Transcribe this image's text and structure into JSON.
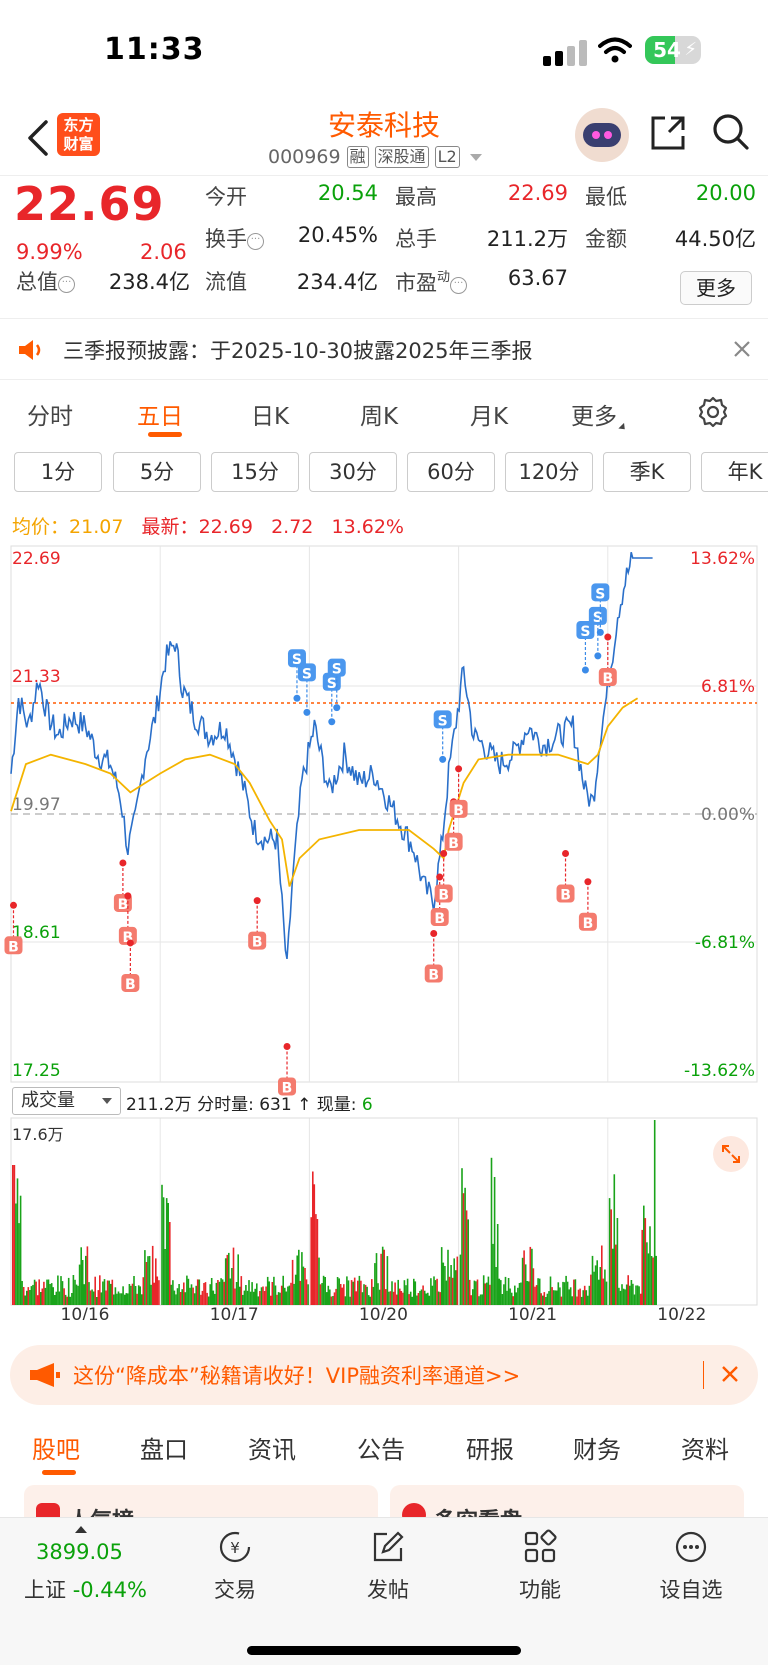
{
  "status": {
    "time": "11:33",
    "battery": "54",
    "battery_level": 0.54
  },
  "header": {
    "logo_line1": "东方",
    "logo_line2": "财富",
    "title": "安泰科技",
    "code": "000969",
    "tags": [
      "融",
      "深股通",
      "L2"
    ]
  },
  "quote": {
    "price": "22.69",
    "change_pct": "9.99%",
    "change": "2.06",
    "fields": {
      "open_label": "今开",
      "open": "20.54",
      "high_label": "最高",
      "high": "22.69",
      "low_label": "最低",
      "low": "20.00",
      "turnover_label": "换手",
      "turnover": "20.45%",
      "volume_label": "总手",
      "volume": "211.2万",
      "amount_label": "金额",
      "amount": "44.50亿",
      "mcap_label": "总值",
      "mcap": "238.4亿",
      "float_label": "流值",
      "float": "234.4亿",
      "pe_label": "市盈",
      "pe_sup": "动",
      "pe": "63.67"
    },
    "more_label": "更多"
  },
  "notice": {
    "text": "三季报预披露：于2025-10-30披露2025年三季报"
  },
  "period_tabs": [
    "分时",
    "五日",
    "日K",
    "周K",
    "月K",
    "更多"
  ],
  "active_period": "五日",
  "minute_buttons": [
    "1分",
    "5分",
    "15分",
    "30分",
    "60分",
    "120分",
    "季K",
    "年K"
  ],
  "chart_legend": {
    "avg_label": "均价：",
    "avg": "21.07",
    "latest_label": "最新：",
    "latest": "22.69",
    "latest_chg": "2.72",
    "latest_pct": "13.62%"
  },
  "chart_data": [
    {
      "type": "line",
      "title": "",
      "ylim": [
        17.25,
        22.69
      ],
      "y_ticks_left": [
        "22.69",
        "21.33",
        "19.97",
        "18.61",
        "17.25"
      ],
      "y_ticks_right": [
        "13.62%",
        "6.81%",
        "0.00%",
        "-6.81%",
        "-13.62%"
      ],
      "x_labels": [
        "10/16",
        "10/17",
        "10/20",
        "10/21",
        "10/22"
      ],
      "reference_price": 19.97,
      "current_price_line": 21.15,
      "series": [],
      "colors": {
        "price": "#2a6fc9",
        "avg": "#f4b400",
        "buy": "#e8262a",
        "sell": "#3b8be8"
      },
      "price_path": [
        [
          0,
          20.4
        ],
        [
          0.15,
          21.2
        ],
        [
          0.35,
          20.9
        ],
        [
          0.55,
          21.4
        ],
        [
          0.75,
          21.0
        ],
        [
          0.95,
          20.8
        ],
        [
          1.2,
          21.0
        ],
        [
          1.5,
          20.9
        ],
        [
          1.75,
          20.6
        ],
        [
          2.0,
          20.5
        ],
        [
          2.2,
          20.15
        ],
        [
          2.35,
          19.6
        ],
        [
          2.5,
          19.9
        ],
        [
          2.7,
          20.6
        ],
        [
          2.9,
          21.0
        ],
        [
          3.1,
          21.6
        ],
        [
          3.3,
          21.8
        ],
        [
          3.45,
          21.3
        ],
        [
          3.7,
          21.0
        ],
        [
          4.0,
          20.8
        ],
        [
          4.3,
          20.9
        ],
        [
          4.6,
          20.4
        ],
        [
          4.9,
          19.8
        ],
        [
          5.1,
          19.7
        ],
        [
          5.35,
          19.7
        ],
        [
          5.55,
          18.3
        ],
        [
          5.65,
          19.2
        ],
        [
          5.85,
          20.3
        ],
        [
          6.1,
          20.9
        ],
        [
          6.4,
          20.2
        ],
        [
          6.7,
          20.6
        ],
        [
          7.0,
          20.3
        ],
        [
          7.3,
          20.4
        ],
        [
          7.6,
          20.1
        ],
        [
          7.9,
          19.8
        ],
        [
          8.1,
          19.6
        ],
        [
          8.3,
          19.2
        ],
        [
          8.5,
          19.05
        ],
        [
          8.65,
          19.6
        ],
        [
          8.8,
          20.4
        ],
        [
          8.95,
          20.95
        ],
        [
          9.1,
          21.5
        ],
        [
          9.3,
          20.8
        ],
        [
          9.5,
          20.7
        ],
        [
          9.8,
          20.5
        ],
        [
          10.1,
          20.6
        ],
        [
          10.4,
          20.9
        ],
        [
          10.7,
          20.7
        ],
        [
          11.0,
          20.8
        ],
        [
          11.3,
          20.9
        ],
        [
          11.55,
          20.2
        ],
        [
          11.7,
          20.1
        ],
        [
          11.85,
          20.8
        ],
        [
          12.0,
          21.3
        ],
        [
          12.2,
          22.1
        ],
        [
          12.35,
          22.45
        ],
        [
          12.5,
          22.69
        ],
        [
          12.9,
          22.69
        ]
      ],
      "avg_path": [
        [
          0,
          20.0
        ],
        [
          0.3,
          20.5
        ],
        [
          0.8,
          20.6
        ],
        [
          1.5,
          20.5
        ],
        [
          2.0,
          20.4
        ],
        [
          2.4,
          20.2
        ],
        [
          2.7,
          20.3
        ],
        [
          3.0,
          20.4
        ],
        [
          3.5,
          20.55
        ],
        [
          4.0,
          20.6
        ],
        [
          4.5,
          20.5
        ],
        [
          4.8,
          20.3
        ],
        [
          5.2,
          19.9
        ],
        [
          5.45,
          19.7
        ],
        [
          5.6,
          19.2
        ],
        [
          5.8,
          19.5
        ],
        [
          6.2,
          19.7
        ],
        [
          7.0,
          19.8
        ],
        [
          8.0,
          19.8
        ],
        [
          8.5,
          19.6
        ],
        [
          8.7,
          19.5
        ],
        [
          8.8,
          19.8
        ],
        [
          9.1,
          20.3
        ],
        [
          9.4,
          20.55
        ],
        [
          10.0,
          20.6
        ],
        [
          11.0,
          20.6
        ],
        [
          11.6,
          20.5
        ],
        [
          11.8,
          20.6
        ],
        [
          12.0,
          20.9
        ],
        [
          12.3,
          21.1
        ],
        [
          12.6,
          21.2
        ]
      ],
      "trade_marks": [
        {
          "t": 0.05,
          "type": "B",
          "price": 19.0
        },
        {
          "t": 2.25,
          "type": "B",
          "price": 19.45
        },
        {
          "t": 2.35,
          "type": "B",
          "price": 19.1
        },
        {
          "t": 2.4,
          "type": "B",
          "price": 18.6
        },
        {
          "t": 4.95,
          "type": "B",
          "price": 19.05
        },
        {
          "t": 5.55,
          "type": "B",
          "price": 17.5
        },
        {
          "t": 5.75,
          "type": "S",
          "price": 21.2
        },
        {
          "t": 5.95,
          "type": "S",
          "price": 21.05
        },
        {
          "t": 6.45,
          "type": "S",
          "price": 20.95
        },
        {
          "t": 6.55,
          "type": "S",
          "price": 21.1
        },
        {
          "t": 8.5,
          "type": "B",
          "price": 18.7
        },
        {
          "t": 8.62,
          "type": "B",
          "price": 19.3
        },
        {
          "t": 8.7,
          "type": "B",
          "price": 19.55
        },
        {
          "t": 8.68,
          "type": "S",
          "price": 20.55
        },
        {
          "t": 8.9,
          "type": "B",
          "price": 20.1
        },
        {
          "t": 9.0,
          "type": "B",
          "price": 20.45
        },
        {
          "t": 11.15,
          "type": "B",
          "price": 19.55
        },
        {
          "t": 11.6,
          "type": "B",
          "price": 19.25
        },
        {
          "t": 11.55,
          "type": "S",
          "price": 21.5
        },
        {
          "t": 11.8,
          "type": "S",
          "price": 21.65
        },
        {
          "t": 11.85,
          "type": "S",
          "price": 21.9
        },
        {
          "t": 12.0,
          "type": "B",
          "price": 21.85
        }
      ]
    },
    {
      "type": "bar",
      "title": "",
      "ylabel_max": "17.6万",
      "note": "",
      "series": []
    }
  ],
  "volume": {
    "selector": "成交量",
    "total": "211.2万",
    "minute_label": "分时量:",
    "minute_val": "631",
    "now_label": "现量:",
    "now_val": "6"
  },
  "ad": {
    "text": "这份“降成本”秘籍请收好！VIP融资利率通道>>"
  },
  "content_tabs": [
    "股吧",
    "盘口",
    "资讯",
    "公告",
    "研报",
    "财务",
    "资料"
  ],
  "peek_cards": [
    "人气榜",
    "多空看盘"
  ],
  "bottom_nav": {
    "index_value": "3899.05",
    "index_name": "上证",
    "index_pct": "-0.44%",
    "items": [
      "交易",
      "发帖",
      "功能",
      "设自选"
    ]
  }
}
